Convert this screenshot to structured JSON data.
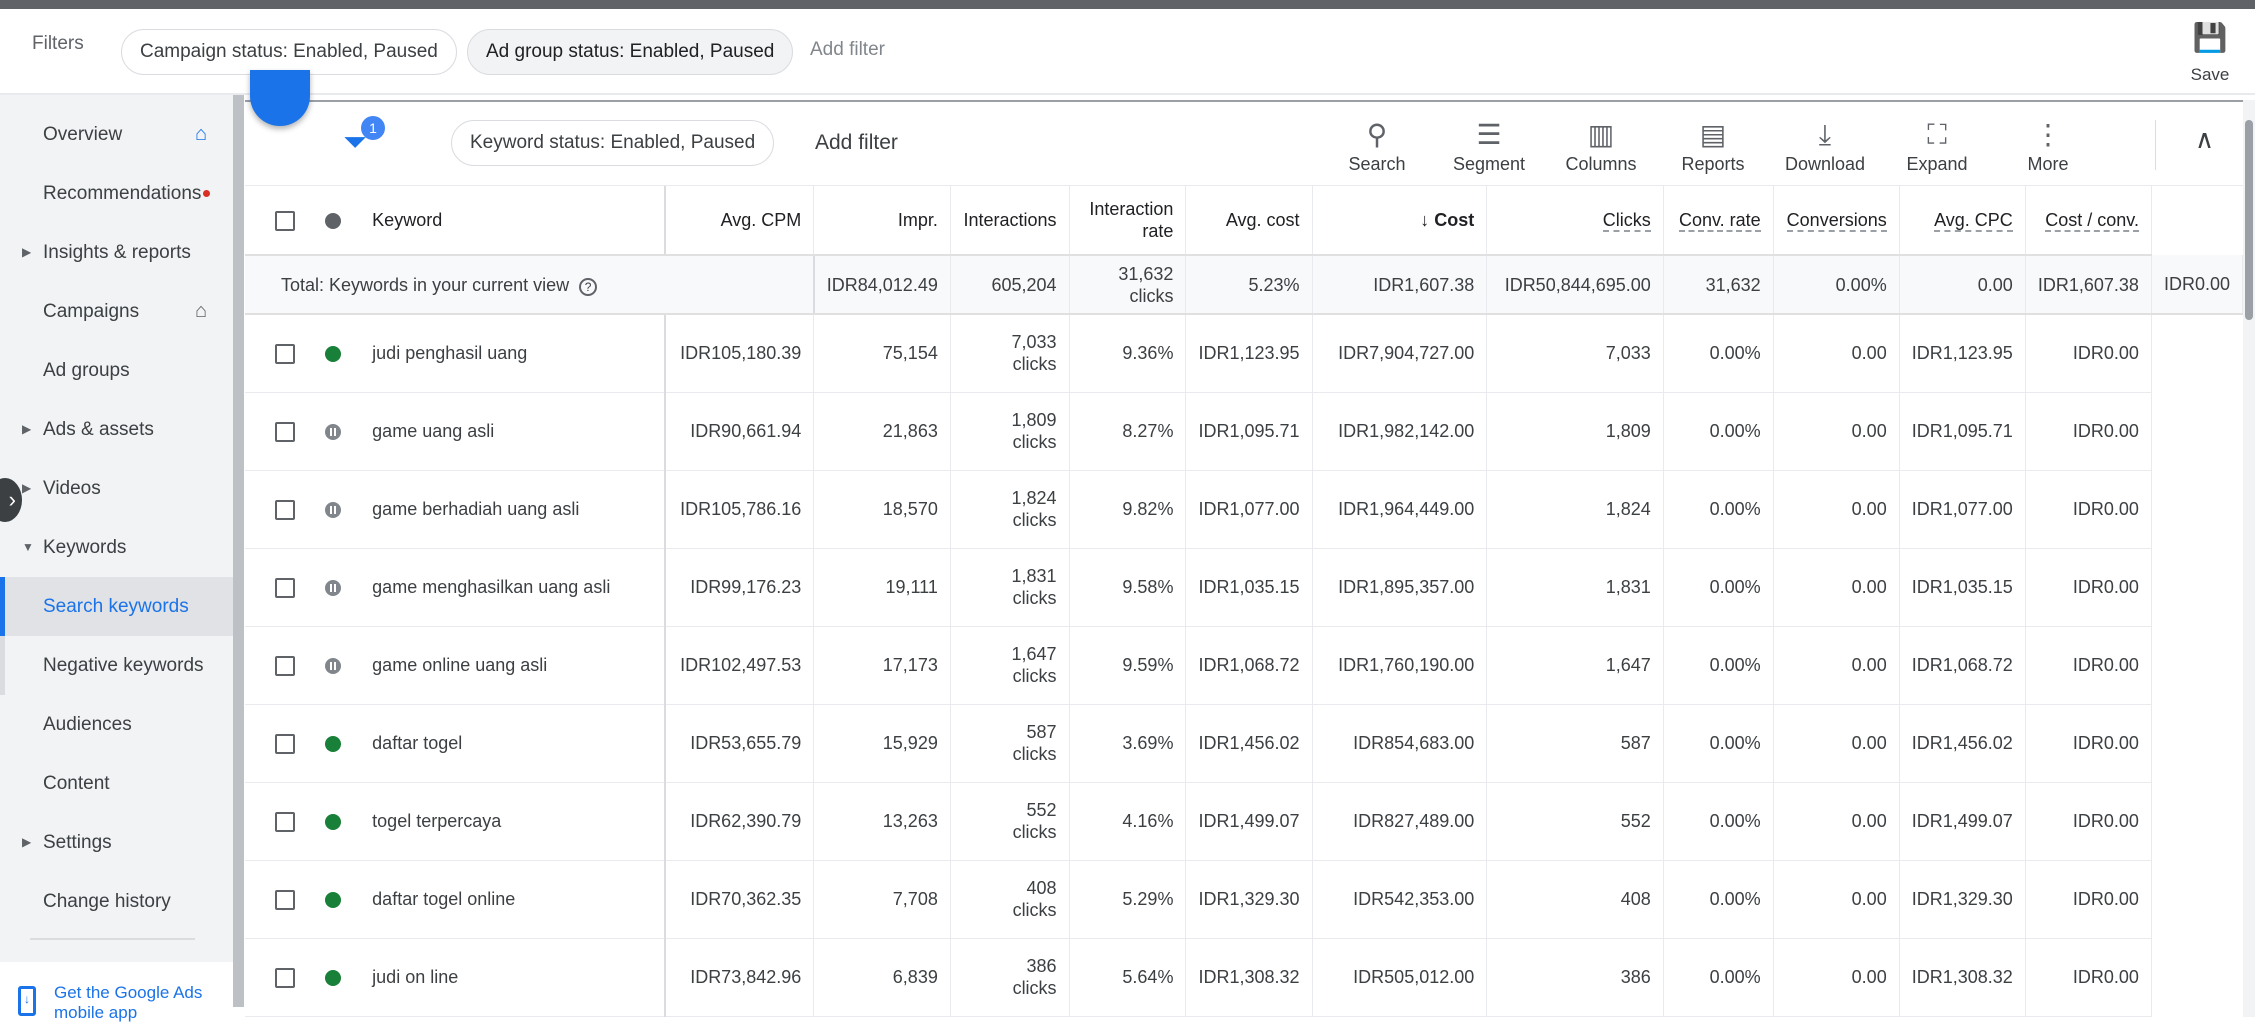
{
  "filters": {
    "label": "Filters",
    "chips": [
      "Campaign status: Enabled, Paused",
      "Ad group status: Enabled, Paused"
    ],
    "add": "Add filter",
    "save": "Save"
  },
  "sidebar": {
    "items": [
      {
        "label": "Overview",
        "arrow": false,
        "home": true
      },
      {
        "label": "Recommendations",
        "arrow": false,
        "dot": true
      },
      {
        "label": "Insights & reports",
        "arrow": true
      },
      {
        "label": "Campaigns",
        "arrow": false,
        "home": true
      },
      {
        "label": "Ad groups",
        "arrow": false
      },
      {
        "label": "Ads & assets",
        "arrow": true
      },
      {
        "label": "Videos",
        "arrow": true
      },
      {
        "label": "Keywords",
        "arrow": true,
        "expanded": true
      },
      {
        "label": "Search keywords",
        "active": true
      },
      {
        "label": "Negative keywords",
        "sub": true
      },
      {
        "label": "Audiences"
      },
      {
        "label": "Content"
      },
      {
        "label": "Settings",
        "arrow": true
      },
      {
        "label": "Change history"
      }
    ],
    "mobile": "Get the Google Ads mobile app"
  },
  "toolbar": {
    "filter_count": "1",
    "chip": "Keyword status: Enabled, Paused",
    "add": "Add filter",
    "tools": [
      {
        "label": "Search",
        "icon": "search-icon"
      },
      {
        "label": "Segment",
        "icon": "segment-icon"
      },
      {
        "label": "Columns",
        "icon": "columns-icon"
      },
      {
        "label": "Reports",
        "icon": "reports-icon"
      },
      {
        "label": "Download",
        "icon": "download-icon"
      },
      {
        "label": "Expand",
        "icon": "expand-icon"
      },
      {
        "label": "More",
        "icon": "more-icon"
      }
    ]
  },
  "table": {
    "columns": [
      "Keyword",
      "Avg. CPM",
      "Impr.",
      "Interactions",
      "Interaction rate",
      "Avg. cost",
      "↓ Cost",
      "Clicks",
      "Conv. rate",
      "Conversions",
      "Avg. CPC",
      "Cost / conv."
    ],
    "total": {
      "label": "Total: Keywords in your current view",
      "values": [
        "IDR84,012.49",
        "605,204",
        "31,632 clicks",
        "5.23%",
        "IDR1,607.38",
        "IDR50,844,695.00",
        "31,632",
        "0.00%",
        "0.00",
        "IDR1,607.38",
        "IDR0.00"
      ]
    },
    "rows": [
      {
        "status": "enabled",
        "keyword": "judi penghasil uang",
        "values": [
          "IDR105,180.39",
          "75,154",
          "7,033 clicks",
          "9.36%",
          "IDR1,123.95",
          "IDR7,904,727.00",
          "7,033",
          "0.00%",
          "0.00",
          "IDR1,123.95",
          "IDR0.00"
        ]
      },
      {
        "status": "paused",
        "keyword": "game uang asli",
        "values": [
          "IDR90,661.94",
          "21,863",
          "1,809 clicks",
          "8.27%",
          "IDR1,095.71",
          "IDR1,982,142.00",
          "1,809",
          "0.00%",
          "0.00",
          "IDR1,095.71",
          "IDR0.00"
        ]
      },
      {
        "status": "paused",
        "keyword": "game berhadiah uang asli",
        "values": [
          "IDR105,786.16",
          "18,570",
          "1,824 clicks",
          "9.82%",
          "IDR1,077.00",
          "IDR1,964,449.00",
          "1,824",
          "0.00%",
          "0.00",
          "IDR1,077.00",
          "IDR0.00"
        ]
      },
      {
        "status": "paused",
        "keyword": "game menghasilkan uang asli",
        "values": [
          "IDR99,176.23",
          "19,111",
          "1,831 clicks",
          "9.58%",
          "IDR1,035.15",
          "IDR1,895,357.00",
          "1,831",
          "0.00%",
          "0.00",
          "IDR1,035.15",
          "IDR0.00"
        ]
      },
      {
        "status": "paused",
        "keyword": "game online uang asli",
        "values": [
          "IDR102,497.53",
          "17,173",
          "1,647 clicks",
          "9.59%",
          "IDR1,068.72",
          "IDR1,760,190.00",
          "1,647",
          "0.00%",
          "0.00",
          "IDR1,068.72",
          "IDR0.00"
        ]
      },
      {
        "status": "enabled",
        "keyword": "daftar togel",
        "values": [
          "IDR53,655.79",
          "15,929",
          "587 clicks",
          "3.69%",
          "IDR1,456.02",
          "IDR854,683.00",
          "587",
          "0.00%",
          "0.00",
          "IDR1,456.02",
          "IDR0.00"
        ]
      },
      {
        "status": "enabled",
        "keyword": "togel terpercaya",
        "values": [
          "IDR62,390.79",
          "13,263",
          "552 clicks",
          "4.16%",
          "IDR1,499.07",
          "IDR827,489.00",
          "552",
          "0.00%",
          "0.00",
          "IDR1,499.07",
          "IDR0.00"
        ]
      },
      {
        "status": "enabled",
        "keyword": "daftar togel online",
        "values": [
          "IDR70,362.35",
          "7,708",
          "408 clicks",
          "5.29%",
          "IDR1,329.30",
          "IDR542,353.00",
          "408",
          "0.00%",
          "0.00",
          "IDR1,329.30",
          "IDR0.00"
        ]
      },
      {
        "status": "enabled",
        "keyword": "judi on line",
        "values": [
          "IDR73,842.96",
          "6,839",
          "386 clicks",
          "5.64%",
          "IDR1,308.32",
          "IDR505,012.00",
          "386",
          "0.00%",
          "0.00",
          "IDR1,308.32",
          "IDR0.00"
        ]
      }
    ]
  }
}
